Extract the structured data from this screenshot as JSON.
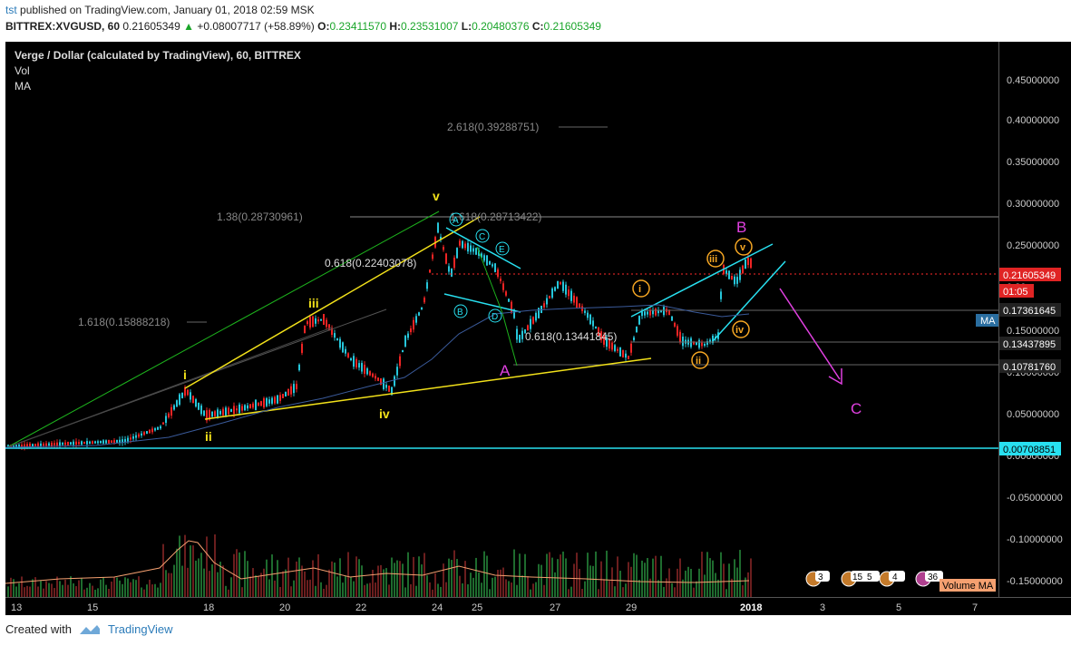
{
  "header": {
    "user": "tst",
    "published_text": "published on TradingView.com, January 01, 2018 02:59 MSK"
  },
  "quote": {
    "symbol": "BITTREX:XVGUSD, 60",
    "price": "0.21605349",
    "change": "+0.08007717 (+58.89%)",
    "o_label": "O:",
    "o": "0.23411570",
    "h_label": "H:",
    "h": "0.23531007",
    "l_label": "L:",
    "l": "0.20480376",
    "c_label": "C:",
    "c": "0.21605349"
  },
  "legend": {
    "title": "Verge / Dollar (calculated by TradingView), 60, BITTREX",
    "vol": "Vol",
    "ma": "MA"
  },
  "colors": {
    "background": "#000000",
    "up": "#26c6da",
    "down": "#ef2424",
    "yellow": "#f2e11a",
    "cyan": "#28e0f0",
    "magenta": "#e040e0",
    "orange": "#f5a623"
  },
  "chart_data": {
    "type": "candlestick",
    "y_ticks": [
      "0.45000000",
      "0.40000000",
      "0.35000000",
      "0.30000000",
      "0.25000000",
      "0.20",
      "0.15000000",
      "0.10000000",
      "0.05000000",
      "0.00000000",
      "-0.05000000",
      "-0.10000000",
      "-0.15000000"
    ],
    "x_ticks": [
      "13",
      "15",
      "18",
      "20",
      "22",
      "24",
      "25",
      "27",
      "29",
      "2018",
      "3",
      "5",
      "7"
    ],
    "price_labels": {
      "current": "0.21605349",
      "countdown": "01:05",
      "ma_value": "0.17361645",
      "ma_tag": "MA",
      "level1": "0.13437895",
      "level2": "0.10781760",
      "level3": "0.00708851"
    },
    "fib_labels": [
      "2.618(0.39288751)",
      "1.38(0.28730961)",
      "1.618(0.28713422)",
      "0.618(0.22403078)",
      "1.618(0.15888218)",
      "0.618(0.13441845)"
    ],
    "wave_labels": {
      "i": "i",
      "ii": "ii",
      "iii": "iii",
      "iv": "iv",
      "v": "v",
      "A_circ": "A",
      "B_circ": "B",
      "C_circ": "C",
      "D_circ": "D",
      "E_circ": "E",
      "big_A": "A",
      "big_B": "B",
      "big_C": "C",
      "o_i": "i",
      "o_ii": "ii",
      "o_iii": "iii",
      "o_iv": "iv",
      "o_v": "v"
    },
    "badges": [
      "3",
      "15",
      "5",
      "4",
      "36"
    ],
    "volume_ma_label": "Volume MA"
  },
  "footer": {
    "created": "Created with",
    "brand": "TradingView"
  }
}
